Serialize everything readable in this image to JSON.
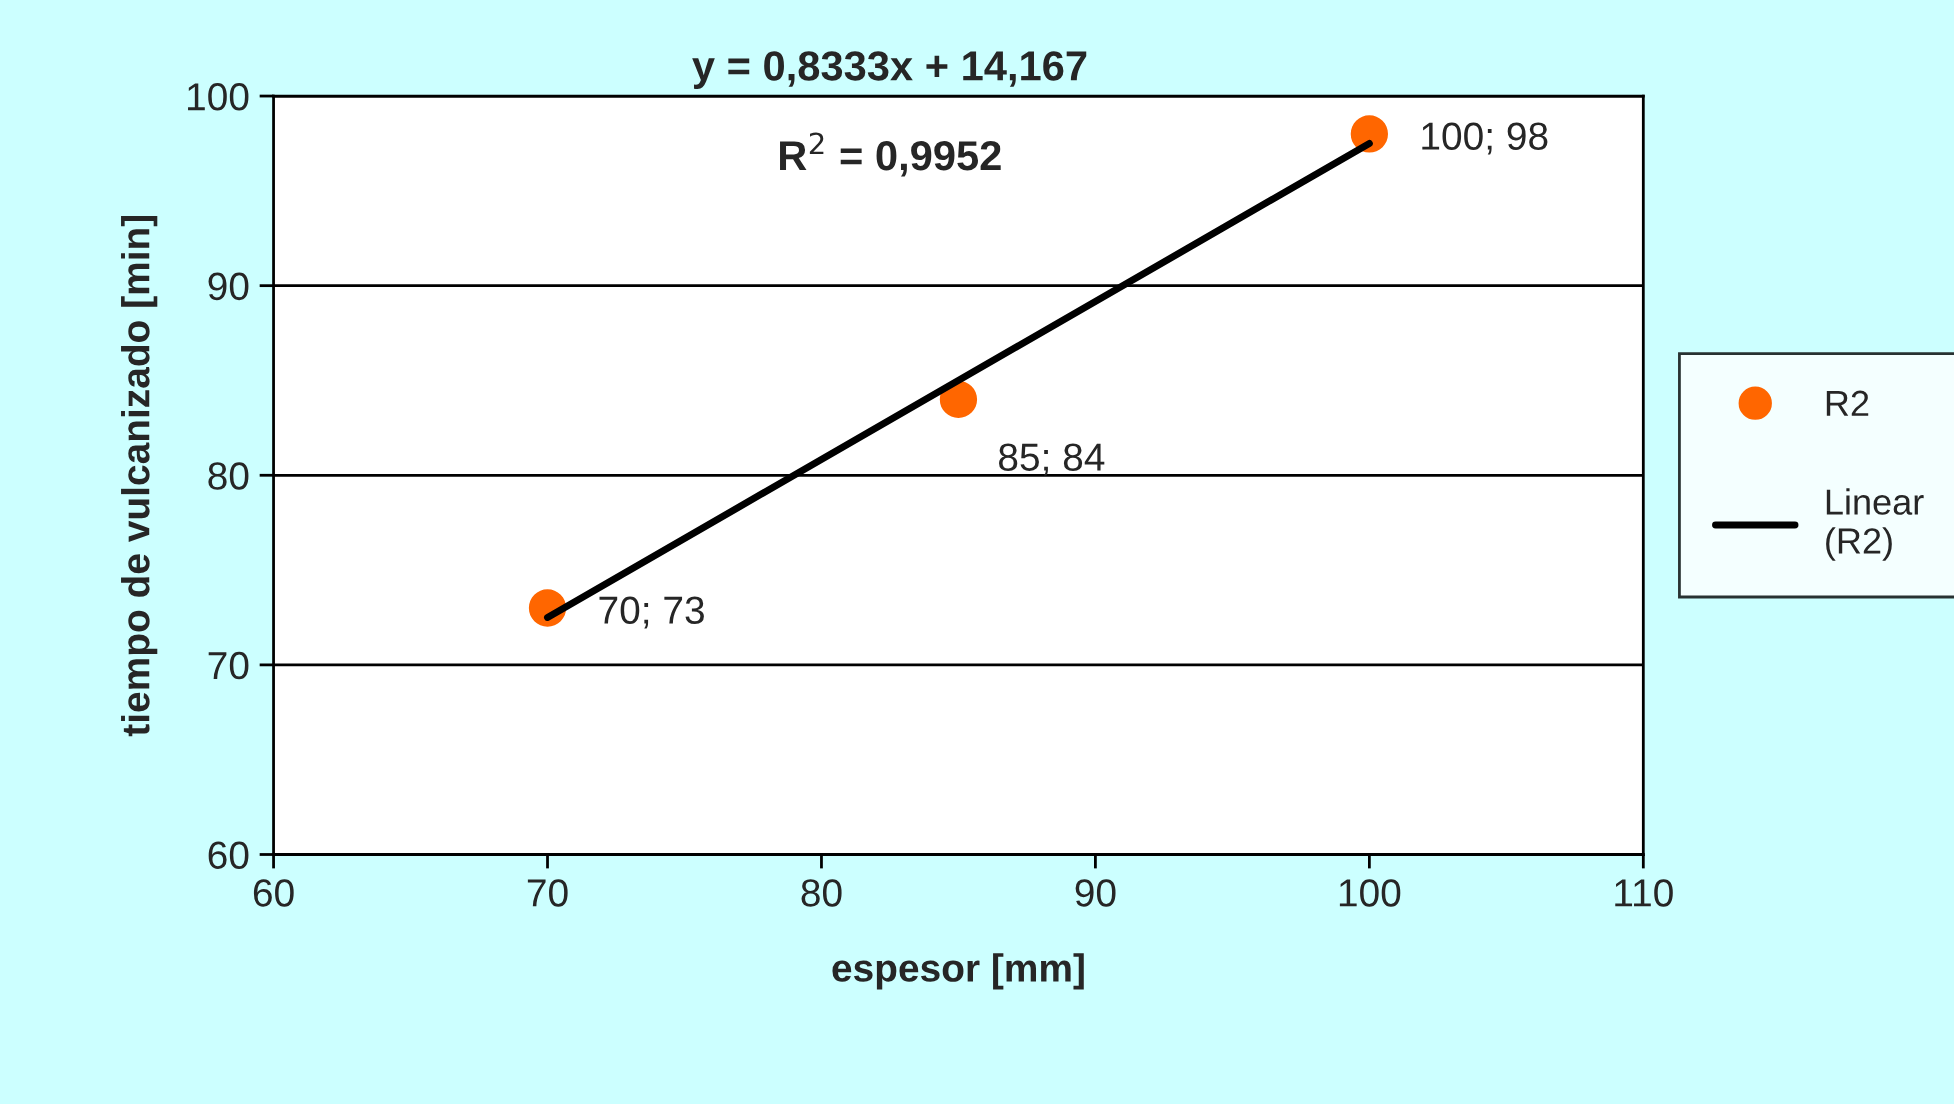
{
  "chart_data": {
    "type": "scatter",
    "xlabel": "espesor [mm]",
    "ylabel": "tiempo de vulcanizado [min]",
    "annotations": [
      "y = 0,8333x + 14,167",
      "R$^{2}$ = 0,9952"
    ],
    "series": [
      {
        "name": "R2",
        "color": "#ff6600",
        "marker": "circle",
        "x": [
          70,
          85,
          100
        ],
        "values": [
          73,
          84,
          98
        ],
        "value_labels": [
          "70; 73",
          "85; 84",
          "100; 98"
        ]
      },
      {
        "name": "Linear\n(R2)",
        "type": "line",
        "color": "#000000",
        "marker": "none",
        "line_style": "solid",
        "x": [
          70,
          100
        ],
        "values": [
          72.5,
          97.5
        ]
      }
    ],
    "xlim": [
      60,
      110
    ],
    "xticks": [
      60,
      70,
      80,
      90,
      100,
      110
    ],
    "ylim": [
      60,
      100
    ],
    "yticks": [
      60,
      70,
      80,
      90,
      100
    ],
    "grid": "y",
    "legend": "right"
  }
}
